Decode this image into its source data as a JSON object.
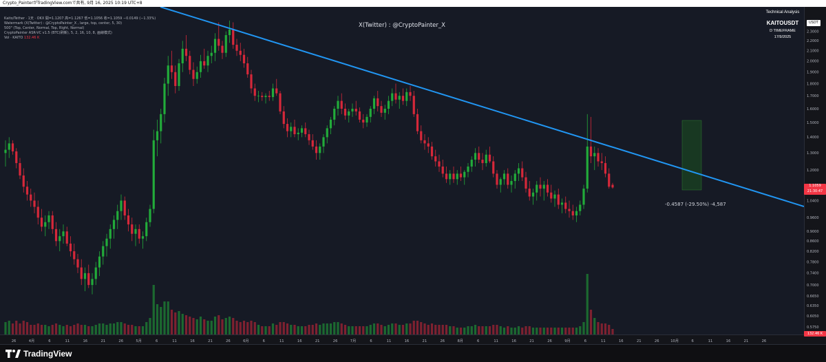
{
  "header": {
    "text": "Crypto_PainterがTradingView.comで共有, 9月 16, 2025 10:19 UTC+8"
  },
  "legend": {
    "ohlc_prefix": "Kaito/Tether · 1天 · OKX  開=1.1207  高=1.1267  低=1.1056  收=1.1059  −0.0149 (−1.33%)",
    "lines": [
      "Watermark (X(Twitter) : @CryptoPainter_X , large, top, center, 5, 30)",
      "500\" (Top, Center, Normal, Top, Right, Normal)",
      "CryptoPainter ASR-VC v1.5 (BTC(刷新), 5, 2, 16, 10, 8, 画線模式)"
    ],
    "vol_label": "Vol · KAITO",
    "vol_value": "132.46 K"
  },
  "watermark": "X(Twitter) : @CryptoPainter_X",
  "info_box": {
    "line1": "Technical Analysis",
    "line2": "KAITOUSDT",
    "line3": "D TIMEFRAME",
    "line4": "17/9/2025"
  },
  "price_axis": {
    "currency": "USDT",
    "last_price": "1.1059",
    "countdown": "21:30:47",
    "vol_last": "132.46 K"
  },
  "measure_label": "-0.4587 (-29.50%) -4,587",
  "footer": {
    "brand": "TradingView"
  },
  "colors": {
    "up": "#22ab3a",
    "down": "#d6283a",
    "trendline": "#2196f3",
    "background": "#161a25"
  },
  "chart_data": {
    "type": "candlestick",
    "symbol": "KAITOUSDT",
    "timeframe": "1D",
    "y_scale": "log",
    "ylim": [
      0.555,
      2.58
    ],
    "y_ticks": [
      2.3,
      2.2,
      2.1,
      2.0,
      1.9,
      1.8,
      1.7,
      1.6,
      1.5,
      1.4,
      1.3,
      1.2,
      1.1,
      1.04,
      0.96,
      0.9,
      0.86,
      0.82,
      0.78,
      0.74,
      0.7,
      0.665,
      0.635,
      0.605,
      0.575,
      0.545
    ],
    "y_tick_labels": [
      "2.3000",
      "2.2000",
      "2.1000",
      "2.0000",
      "1.9000",
      "1.8000",
      "1.7000",
      "1.6000",
      "1.5000",
      "1.4000",
      "1.3000",
      "1.2000",
      "1.1000",
      "1.0400",
      "0.9600",
      "0.9000",
      "0.8600",
      "0.8200",
      "0.7800",
      "0.7400",
      "0.7000",
      "0.6650",
      "0.6350",
      "0.6050",
      "0.5750",
      "0.5450"
    ],
    "x_labels": [
      "26",
      "4月",
      "6",
      "11",
      "16",
      "21",
      "26",
      "5月",
      "6",
      "11",
      "16",
      "21",
      "26",
      "6月",
      "6",
      "11",
      "16",
      "21",
      "26",
      "7月",
      "6",
      "11",
      "16",
      "21",
      "26",
      "8月",
      "6",
      "11",
      "16",
      "21",
      "26",
      "9月",
      "6",
      "11",
      "16",
      "21",
      "26",
      "10月",
      "6",
      "11",
      "16",
      "21",
      "26"
    ],
    "trendline": {
      "from": {
        "date": "2025-04-17",
        "price": 2.62
      },
      "to": {
        "date": "2025-10-26",
        "price": 1.01
      },
      "color": "#2196f3"
    },
    "measure": {
      "change": -0.4587,
      "percent": -29.5,
      "ticks": -4587
    },
    "candles": [
      [
        1.3,
        1.38,
        1.22,
        1.32,
        0.09
      ],
      [
        1.32,
        1.4,
        1.27,
        1.36,
        0.1
      ],
      [
        1.36,
        1.38,
        1.29,
        1.31,
        0.08
      ],
      [
        1.31,
        1.33,
        1.21,
        1.24,
        0.1
      ],
      [
        1.24,
        1.27,
        1.15,
        1.17,
        0.08
      ],
      [
        1.17,
        1.21,
        1.08,
        1.11,
        0.1
      ],
      [
        1.11,
        1.14,
        1.04,
        1.07,
        0.09
      ],
      [
        1.07,
        1.1,
        1.01,
        1.04,
        0.07
      ],
      [
        1.04,
        1.08,
        0.98,
        1.01,
        0.07
      ],
      [
        1.01,
        1.04,
        0.93,
        0.96,
        0.08
      ],
      [
        0.96,
        1.0,
        0.9,
        0.92,
        0.07
      ],
      [
        0.92,
        0.97,
        0.88,
        0.94,
        0.07
      ],
      [
        0.94,
        0.99,
        0.91,
        0.97,
        0.06
      ],
      [
        0.97,
        0.99,
        0.89,
        0.91,
        0.07
      ],
      [
        0.91,
        0.94,
        0.84,
        0.86,
        0.08
      ],
      [
        0.86,
        0.91,
        0.82,
        0.88,
        0.07
      ],
      [
        0.88,
        0.93,
        0.85,
        0.9,
        0.06
      ],
      [
        0.9,
        0.92,
        0.84,
        0.85,
        0.07
      ],
      [
        0.85,
        0.88,
        0.8,
        0.82,
        0.06
      ],
      [
        0.82,
        0.85,
        0.77,
        0.79,
        0.07
      ],
      [
        0.79,
        0.81,
        0.74,
        0.76,
        0.08
      ],
      [
        0.76,
        0.79,
        0.7,
        0.72,
        0.07
      ],
      [
        0.72,
        0.76,
        0.68,
        0.74,
        0.07
      ],
      [
        0.74,
        0.77,
        0.69,
        0.7,
        0.06
      ],
      [
        0.7,
        0.74,
        0.67,
        0.72,
        0.06
      ],
      [
        0.72,
        0.78,
        0.7,
        0.76,
        0.07
      ],
      [
        0.76,
        0.82,
        0.73,
        0.8,
        0.08
      ],
      [
        0.8,
        0.86,
        0.77,
        0.84,
        0.08
      ],
      [
        0.84,
        0.89,
        0.8,
        0.87,
        0.07
      ],
      [
        0.87,
        0.93,
        0.83,
        0.91,
        0.08
      ],
      [
        0.91,
        0.97,
        0.87,
        0.95,
        0.08
      ],
      [
        0.95,
        1.02,
        0.91,
        0.99,
        0.09
      ],
      [
        0.99,
        1.07,
        0.95,
        1.04,
        0.09
      ],
      [
        1.04,
        1.06,
        0.95,
        0.97,
        0.08
      ],
      [
        0.97,
        1.0,
        0.9,
        0.93,
        0.07
      ],
      [
        0.93,
        0.96,
        0.86,
        0.89,
        0.07
      ],
      [
        0.89,
        0.93,
        0.84,
        0.91,
        0.06
      ],
      [
        0.91,
        0.93,
        0.85,
        0.87,
        0.06
      ],
      [
        0.87,
        0.9,
        0.83,
        0.88,
        0.06
      ],
      [
        0.88,
        0.96,
        0.86,
        0.94,
        0.09
      ],
      [
        0.94,
        1.02,
        0.92,
        1.0,
        0.12
      ],
      [
        1.0,
        1.45,
        0.98,
        1.38,
        0.36
      ],
      [
        1.38,
        1.52,
        1.28,
        1.44,
        0.22
      ],
      [
        1.44,
        1.6,
        1.36,
        1.56,
        0.2
      ],
      [
        1.56,
        1.85,
        1.5,
        1.8,
        0.24
      ],
      [
        1.8,
        2.05,
        1.7,
        1.96,
        0.24
      ],
      [
        1.96,
        2.1,
        1.84,
        1.9,
        0.18
      ],
      [
        1.9,
        1.96,
        1.72,
        1.78,
        0.16
      ],
      [
        1.78,
        2.02,
        1.74,
        1.98,
        0.17
      ],
      [
        1.98,
        2.2,
        1.9,
        2.12,
        0.15
      ],
      [
        2.12,
        2.26,
        2.0,
        2.05,
        0.14
      ],
      [
        2.05,
        2.1,
        1.88,
        1.92,
        0.13
      ],
      [
        1.92,
        1.99,
        1.78,
        1.84,
        0.12
      ],
      [
        1.84,
        1.95,
        1.8,
        1.9,
        0.11
      ],
      [
        1.9,
        2.06,
        1.85,
        2.0,
        0.13
      ],
      [
        2.0,
        2.12,
        1.93,
        1.96,
        0.11
      ],
      [
        1.96,
        2.1,
        1.9,
        2.05,
        0.1
      ],
      [
        2.05,
        2.15,
        1.98,
        2.08,
        0.1
      ],
      [
        2.08,
        2.28,
        2.0,
        2.22,
        0.13
      ],
      [
        2.22,
        2.4,
        2.1,
        2.15,
        0.14
      ],
      [
        2.15,
        2.2,
        2.02,
        2.08,
        0.11
      ],
      [
        2.08,
        2.3,
        2.04,
        2.26,
        0.12
      ],
      [
        2.26,
        2.42,
        2.18,
        2.32,
        0.13
      ],
      [
        2.32,
        2.4,
        2.12,
        2.16,
        0.12
      ],
      [
        2.16,
        2.22,
        2.05,
        2.1,
        0.1
      ],
      [
        2.1,
        2.18,
        2.0,
        2.06,
        0.09
      ],
      [
        2.06,
        2.12,
        1.94,
        1.98,
        0.1
      ],
      [
        1.98,
        2.04,
        1.85,
        1.88,
        0.09
      ],
      [
        1.88,
        1.92,
        1.72,
        1.76,
        0.1
      ],
      [
        1.76,
        1.8,
        1.66,
        1.7,
        0.09
      ],
      [
        1.7,
        1.74,
        1.65,
        1.7,
        0.07
      ],
      [
        1.7,
        1.73,
        1.66,
        1.69,
        0.06
      ],
      [
        1.69,
        1.72,
        1.64,
        1.7,
        0.06
      ],
      [
        1.7,
        1.74,
        1.66,
        1.69,
        0.06
      ],
      [
        1.69,
        1.8,
        1.66,
        1.76,
        0.08
      ],
      [
        1.76,
        1.84,
        1.7,
        1.72,
        0.07
      ],
      [
        1.72,
        1.74,
        1.56,
        1.58,
        0.09
      ],
      [
        1.58,
        1.62,
        1.46,
        1.49,
        0.09
      ],
      [
        1.49,
        1.53,
        1.4,
        1.44,
        0.08
      ],
      [
        1.44,
        1.5,
        1.4,
        1.47,
        0.07
      ],
      [
        1.47,
        1.52,
        1.4,
        1.42,
        0.07
      ],
      [
        1.42,
        1.46,
        1.38,
        1.43,
        0.06
      ],
      [
        1.43,
        1.48,
        1.4,
        1.46,
        0.06
      ],
      [
        1.46,
        1.5,
        1.4,
        1.42,
        0.06
      ],
      [
        1.42,
        1.45,
        1.35,
        1.38,
        0.07
      ],
      [
        1.38,
        1.42,
        1.32,
        1.34,
        0.07
      ],
      [
        1.34,
        1.38,
        1.26,
        1.3,
        0.08
      ],
      [
        1.3,
        1.36,
        1.26,
        1.34,
        0.07
      ],
      [
        1.34,
        1.42,
        1.3,
        1.4,
        0.08
      ],
      [
        1.4,
        1.48,
        1.36,
        1.46,
        0.08
      ],
      [
        1.46,
        1.54,
        1.42,
        1.52,
        0.08
      ],
      [
        1.52,
        1.62,
        1.48,
        1.6,
        0.09
      ],
      [
        1.6,
        1.7,
        1.55,
        1.66,
        0.09
      ],
      [
        1.66,
        1.72,
        1.56,
        1.6,
        0.08
      ],
      [
        1.6,
        1.64,
        1.52,
        1.55,
        0.07
      ],
      [
        1.55,
        1.6,
        1.5,
        1.58,
        0.06
      ],
      [
        1.58,
        1.64,
        1.54,
        1.6,
        0.06
      ],
      [
        1.6,
        1.66,
        1.55,
        1.58,
        0.06
      ],
      [
        1.58,
        1.61,
        1.5,
        1.52,
        0.06
      ],
      [
        1.52,
        1.56,
        1.46,
        1.5,
        0.06
      ],
      [
        1.5,
        1.56,
        1.47,
        1.54,
        0.06
      ],
      [
        1.54,
        1.62,
        1.5,
        1.6,
        0.07
      ],
      [
        1.6,
        1.7,
        1.56,
        1.68,
        0.08
      ],
      [
        1.68,
        1.74,
        1.58,
        1.62,
        0.08
      ],
      [
        1.62,
        1.66,
        1.54,
        1.57,
        0.07
      ],
      [
        1.57,
        1.63,
        1.52,
        1.6,
        0.06
      ],
      [
        1.6,
        1.7,
        1.56,
        1.66,
        0.07
      ],
      [
        1.66,
        1.76,
        1.62,
        1.72,
        0.08
      ],
      [
        1.72,
        1.8,
        1.64,
        1.67,
        0.08
      ],
      [
        1.67,
        1.73,
        1.6,
        1.7,
        0.07
      ],
      [
        1.7,
        1.76,
        1.63,
        1.66,
        0.07
      ],
      [
        1.66,
        1.76,
        1.62,
        1.73,
        0.08
      ],
      [
        1.73,
        1.78,
        1.66,
        1.7,
        0.08
      ],
      [
        1.7,
        1.74,
        1.54,
        1.56,
        0.1
      ],
      [
        1.56,
        1.6,
        1.42,
        1.44,
        0.1
      ],
      [
        1.44,
        1.48,
        1.36,
        1.38,
        0.09
      ],
      [
        1.38,
        1.42,
        1.32,
        1.36,
        0.08
      ],
      [
        1.36,
        1.4,
        1.3,
        1.34,
        0.07
      ],
      [
        1.34,
        1.37,
        1.26,
        1.28,
        0.08
      ],
      [
        1.28,
        1.32,
        1.22,
        1.25,
        0.07
      ],
      [
        1.25,
        1.29,
        1.19,
        1.22,
        0.07
      ],
      [
        1.22,
        1.26,
        1.16,
        1.18,
        0.07
      ],
      [
        1.18,
        1.22,
        1.13,
        1.15,
        0.07
      ],
      [
        1.15,
        1.2,
        1.12,
        1.18,
        0.06
      ],
      [
        1.18,
        1.22,
        1.13,
        1.15,
        0.06
      ],
      [
        1.15,
        1.2,
        1.12,
        1.18,
        0.05
      ],
      [
        1.18,
        1.22,
        1.14,
        1.16,
        0.05
      ],
      [
        1.16,
        1.2,
        1.12,
        1.19,
        0.05
      ],
      [
        1.19,
        1.24,
        1.16,
        1.22,
        0.06
      ],
      [
        1.22,
        1.28,
        1.19,
        1.26,
        0.06
      ],
      [
        1.26,
        1.33,
        1.22,
        1.3,
        0.07
      ],
      [
        1.3,
        1.34,
        1.24,
        1.26,
        0.06
      ],
      [
        1.26,
        1.3,
        1.2,
        1.24,
        0.06
      ],
      [
        1.24,
        1.32,
        1.22,
        1.29,
        0.06
      ],
      [
        1.29,
        1.34,
        1.24,
        1.25,
        0.06
      ],
      [
        1.25,
        1.28,
        1.16,
        1.18,
        0.07
      ],
      [
        1.18,
        1.2,
        1.1,
        1.12,
        0.07
      ],
      [
        1.12,
        1.16,
        1.08,
        1.15,
        0.06
      ],
      [
        1.15,
        1.2,
        1.12,
        1.18,
        0.05
      ],
      [
        1.18,
        1.21,
        1.1,
        1.12,
        0.06
      ],
      [
        1.12,
        1.17,
        1.08,
        1.14,
        0.05
      ],
      [
        1.14,
        1.2,
        1.1,
        1.18,
        0.05
      ],
      [
        1.18,
        1.24,
        1.14,
        1.21,
        0.06
      ],
      [
        1.21,
        1.25,
        1.14,
        1.16,
        0.05
      ],
      [
        1.16,
        1.19,
        1.08,
        1.1,
        0.06
      ],
      [
        1.1,
        1.14,
        1.04,
        1.06,
        0.06
      ],
      [
        1.06,
        1.1,
        1.02,
        1.08,
        0.05
      ],
      [
        1.08,
        1.14,
        1.04,
        1.12,
        0.05
      ],
      [
        1.12,
        1.16,
        1.06,
        1.1,
        0.05
      ],
      [
        1.1,
        1.14,
        1.04,
        1.12,
        0.05
      ],
      [
        1.12,
        1.15,
        1.06,
        1.08,
        0.05
      ],
      [
        1.08,
        1.12,
        1.03,
        1.05,
        0.05
      ],
      [
        1.05,
        1.09,
        1.01,
        1.07,
        0.05
      ],
      [
        1.07,
        1.1,
        1.0,
        1.02,
        0.05
      ],
      [
        1.02,
        1.05,
        0.98,
        1.03,
        0.05
      ],
      [
        1.03,
        1.06,
        0.98,
        1.0,
        0.05
      ],
      [
        1.0,
        1.04,
        0.96,
        0.99,
        0.05
      ],
      [
        0.99,
        1.02,
        0.95,
        0.97,
        0.05
      ],
      [
        0.97,
        1.01,
        0.94,
        0.99,
        0.05
      ],
      [
        0.99,
        1.04,
        0.97,
        1.02,
        0.06
      ],
      [
        1.02,
        1.12,
        1.0,
        1.1,
        0.09
      ],
      [
        1.1,
        1.56,
        1.08,
        1.34,
        0.44
      ],
      [
        1.34,
        1.54,
        1.24,
        1.28,
        0.18
      ],
      [
        1.28,
        1.34,
        1.2,
        1.3,
        0.12
      ],
      [
        1.3,
        1.33,
        1.22,
        1.25,
        0.09
      ],
      [
        1.25,
        1.3,
        1.2,
        1.24,
        0.08
      ],
      [
        1.24,
        1.28,
        1.16,
        1.18,
        0.08
      ],
      [
        1.18,
        1.21,
        1.1,
        1.11,
        0.07
      ],
      [
        1.12,
        1.13,
        1.1,
        1.106,
        0.04
      ]
    ]
  }
}
